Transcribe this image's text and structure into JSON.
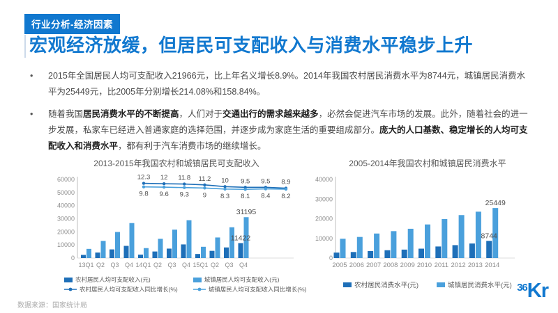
{
  "page": {
    "badge": "行业分析-经济因素",
    "title": "宏观经济放缓，但居民可支配收入与消费水平稳步上升",
    "source": "数据来源：国家统计局",
    "logo": {
      "small": "36",
      "big": "Kr"
    }
  },
  "colors": {
    "brand_blue": "#1178cf",
    "dark_series": "#1e6fb8",
    "light_series": "#4aa0dc",
    "axis_text": "#8c8c8c",
    "label_text": "#4d4d4d"
  },
  "bullets": [
    {
      "segments": [
        {
          "text": "2015年全国居民人均可支配收入21966元，比上年名义增长8.9%。2014年我国农村居民消费水平为8744元，城镇居民消费水平为25449元，比2005年分别增长214.08%和158.84%。",
          "bold": false
        }
      ]
    },
    {
      "segments": [
        {
          "text": "随着我国",
          "bold": false
        },
        {
          "text": "居民消费水平的不断提高",
          "bold": true
        },
        {
          "text": "，人们对于",
          "bold": false
        },
        {
          "text": "交通出行的需求越来越多",
          "bold": true
        },
        {
          "text": "，必然会促进汽车市场的发展。此外，随着社会的进一步发展，私家车已经进入普通家庭的选择范围，并逐步成为家庭生活的重要组成部分。",
          "bold": false
        },
        {
          "text": "庞大的人口基数、稳定增长的人均可支配收入和消费水平",
          "bold": true
        },
        {
          "text": "，都有利于汽车消费市场的继续增长。",
          "bold": false
        }
      ]
    }
  ],
  "chart_data": [
    {
      "type": "bar",
      "title": "2013-2015年我国农村和城镇居民可支配收入",
      "categories": [
        "13Q1",
        "Q2",
        "Q3",
        "Q4",
        "14Q1",
        "Q2",
        "Q3",
        "Q4",
        "15Q1",
        "Q2",
        "Q3",
        "Q4"
      ],
      "bar_series": [
        {
          "name": "农村居民人均可支配收入(元)",
          "color": "#1e6fb8",
          "values": [
            2400,
            4200,
            6600,
            9300,
            2600,
            5000,
            7200,
            10400,
            3100,
            5500,
            8100,
            11422
          ]
        },
        {
          "name": "城镇居民人均可支配收入(元)",
          "color": "#4aa0dc",
          "values": [
            7000,
            13100,
            19900,
            26700,
            7600,
            14700,
            21700,
            28900,
            8600,
            15700,
            23500,
            31195
          ]
        }
      ],
      "line_series": [
        {
          "name": "农村居民人均可支配收入同比增长(%)",
          "color": "#1e6fb8",
          "values": [
            12.3,
            12,
            11.8,
            11.2,
            10,
            9.5,
            9.5,
            8.9
          ],
          "label_position": "above"
        },
        {
          "name": "城镇居民人均可支配收入同比增长(%)",
          "color": "#4aa0dc",
          "values": [
            9.8,
            9.6,
            9.3,
            9,
            8.3,
            8.1,
            8.4,
            8.2
          ],
          "label_position": "below"
        }
      ],
      "bar_labels": [
        {
          "series": 0,
          "index": 11,
          "text": "11422"
        },
        {
          "series": 1,
          "index": 11,
          "text": "31195"
        }
      ],
      "ylim": [
        0,
        60000
      ],
      "yticks": [
        0,
        10000,
        20000,
        30000,
        40000,
        50000,
        60000
      ],
      "y2lim": [
        -40,
        15
      ],
      "grid": false,
      "legend_position": "bottom"
    },
    {
      "type": "bar",
      "title": "2005-2014年我国农村和城镇居民消费水平",
      "categories": [
        "2005",
        "2006",
        "2007",
        "2008",
        "2009",
        "2010",
        "2011",
        "2012",
        "2013",
        "2014"
      ],
      "bar_series": [
        {
          "name": "农村居民消费水平(元)",
          "color": "#1e6fb8",
          "values": [
            2780,
            3070,
            3540,
            3980,
            4300,
            4780,
            5880,
            6570,
            7400,
            8744
          ]
        },
        {
          "name": "城镇居民消费水平(元)",
          "color": "#4aa0dc",
          "values": [
            9830,
            10740,
            12480,
            13690,
            14900,
            17100,
            19850,
            21860,
            23600,
            25449
          ]
        }
      ],
      "bar_labels": [
        {
          "series": 0,
          "index": 9,
          "text": "8744"
        },
        {
          "series": 1,
          "index": 9,
          "text": "25449"
        }
      ],
      "ylim": [
        0,
        40000
      ],
      "yticks": [
        0,
        10000,
        20000,
        30000,
        40000
      ],
      "grid": false,
      "legend_position": "bottom"
    }
  ]
}
